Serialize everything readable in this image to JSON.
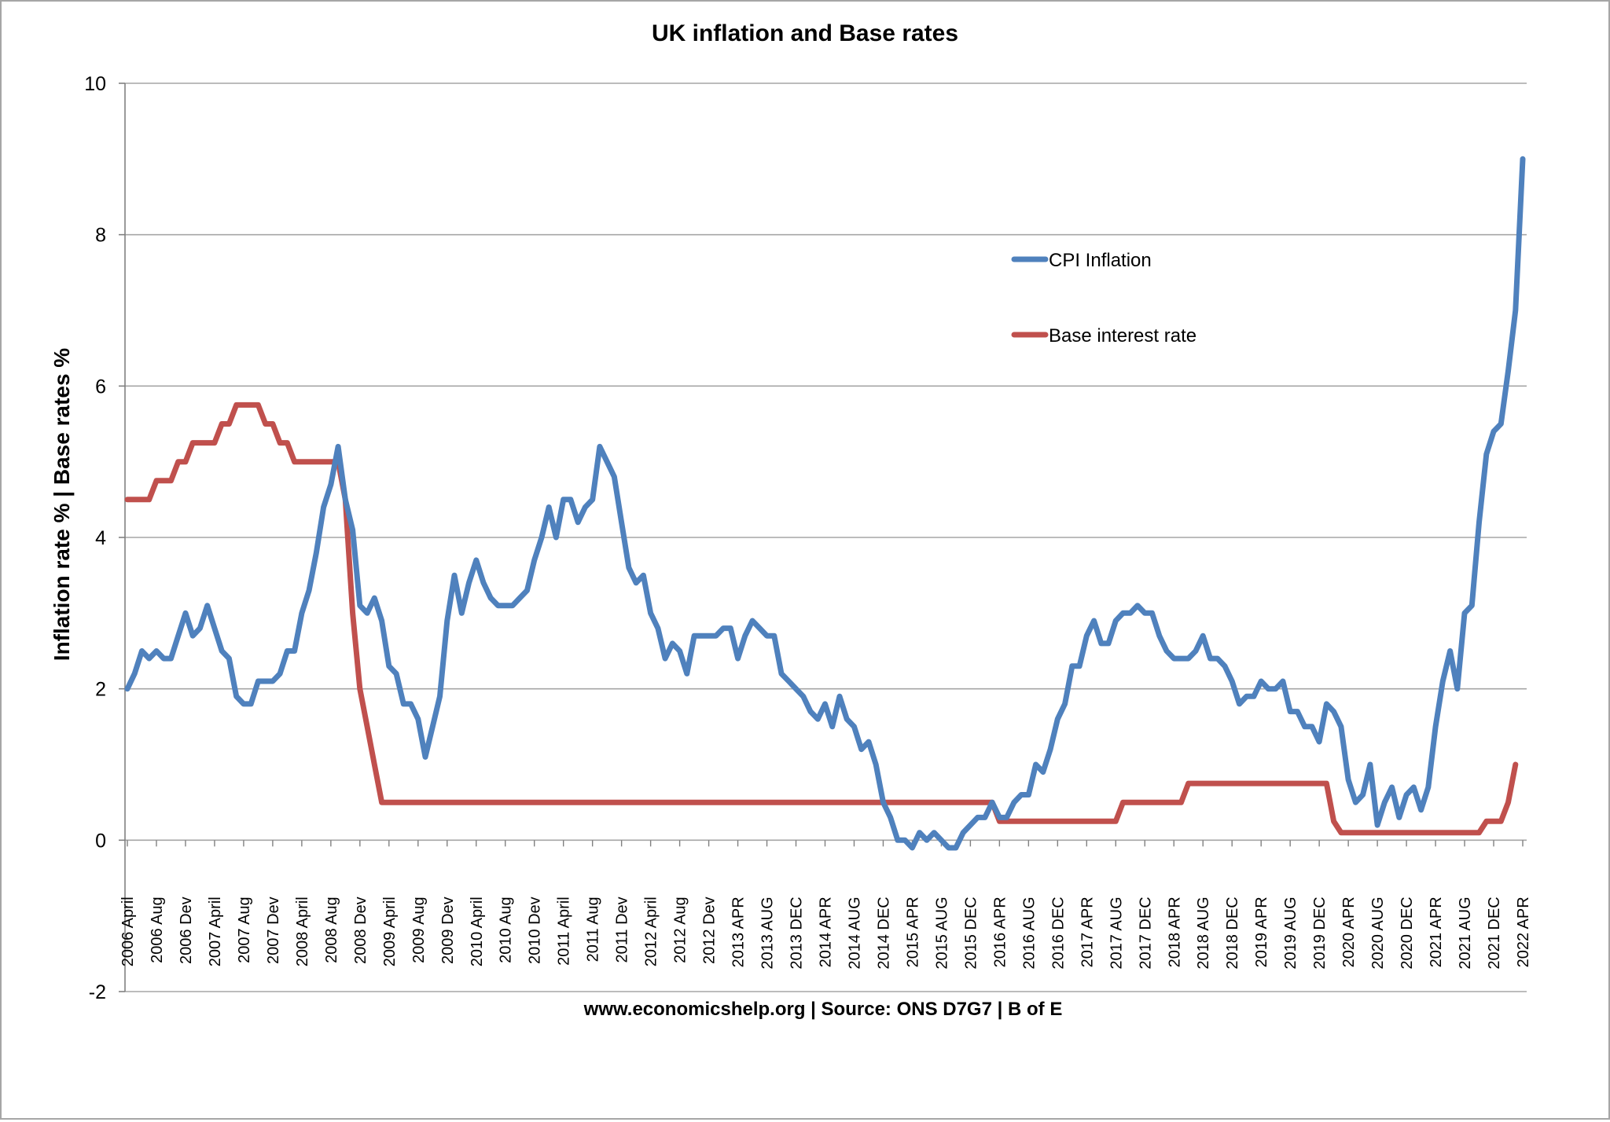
{
  "chart_data": {
    "type": "line",
    "title": "UK inflation and Base rates",
    "ylabel": "Inflation rate %  |  Base rates %",
    "xlabel": "www.economicshelp.org | Source: ONS D7G7  | B of E",
    "ylim": [
      -2,
      10
    ],
    "yticks": [
      -2,
      0,
      2,
      4,
      6,
      8,
      10
    ],
    "grid": true,
    "legend_position": "top-right",
    "x_tick_labels": [
      "2006 April",
      "2006 Aug",
      "2006 Dev",
      "2007 April",
      "2007 Aug",
      "2007 Dev",
      "2008 April",
      "2008 Aug",
      "2008 Dev",
      "2009 April",
      "2009 Aug",
      "2009 Dev",
      "2010 April",
      "2010 Aug",
      "2010 Dev",
      "2011 April",
      "2011 Aug",
      "2011 Dev",
      "2012 April",
      "2012 Aug",
      "2012 Dev",
      "2013 APR",
      "2013 AUG",
      "2013 DEC",
      "2014 APR",
      "2014 AUG",
      "2014 DEC",
      "2015 APR",
      "2015 AUG",
      "2015 DEC",
      "2016 APR",
      "2016 AUG",
      "2016 DEC",
      "2017 APR",
      "2017 AUG",
      "2017 DEC",
      "2018 APR",
      "2018 AUG",
      "2018 DEC",
      "2019 APR",
      "2019 AUG",
      "2019 DEC",
      "2020 APR",
      "2020 AUG",
      "2020 DEC",
      "2021 APR",
      "2021 AUG",
      "2021 DEC",
      "2022 APR"
    ],
    "months_per_tick": 4,
    "series": [
      {
        "name": "CPI Inflation",
        "color": "#4f81bd",
        "values": [
          2.0,
          2.2,
          2.5,
          2.4,
          2.5,
          2.4,
          2.4,
          2.7,
          3.0,
          2.7,
          2.8,
          3.1,
          2.8,
          2.5,
          2.4,
          1.9,
          1.8,
          1.8,
          2.1,
          2.1,
          2.1,
          2.2,
          2.5,
          2.5,
          3.0,
          3.3,
          3.8,
          4.4,
          4.7,
          5.2,
          4.5,
          4.1,
          3.1,
          3.0,
          3.2,
          2.9,
          2.3,
          2.2,
          1.8,
          1.8,
          1.6,
          1.1,
          1.5,
          1.9,
          2.9,
          3.5,
          3.0,
          3.4,
          3.7,
          3.4,
          3.2,
          3.1,
          3.1,
          3.1,
          3.2,
          3.3,
          3.7,
          4.0,
          4.4,
          4.0,
          4.5,
          4.5,
          4.2,
          4.4,
          4.5,
          5.2,
          5.0,
          4.8,
          4.2,
          3.6,
          3.4,
          3.5,
          3.0,
          2.8,
          2.4,
          2.6,
          2.5,
          2.2,
          2.7,
          2.7,
          2.7,
          2.7,
          2.8,
          2.8,
          2.4,
          2.7,
          2.9,
          2.8,
          2.7,
          2.7,
          2.2,
          2.1,
          2.0,
          1.9,
          1.7,
          1.6,
          1.8,
          1.5,
          1.9,
          1.6,
          1.5,
          1.2,
          1.3,
          1.0,
          0.5,
          0.3,
          0.0,
          0.0,
          -0.1,
          0.1,
          0.0,
          0.1,
          0.0,
          -0.1,
          -0.1,
          0.1,
          0.2,
          0.3,
          0.3,
          0.5,
          0.3,
          0.3,
          0.5,
          0.6,
          0.6,
          1.0,
          0.9,
          1.2,
          1.6,
          1.8,
          2.3,
          2.3,
          2.7,
          2.9,
          2.6,
          2.6,
          2.9,
          3.0,
          3.0,
          3.1,
          3.0,
          3.0,
          2.7,
          2.5,
          2.4,
          2.4,
          2.4,
          2.5,
          2.7,
          2.4,
          2.4,
          2.3,
          2.1,
          1.8,
          1.9,
          1.9,
          2.1,
          2.0,
          2.0,
          2.1,
          1.7,
          1.7,
          1.5,
          1.5,
          1.3,
          1.8,
          1.7,
          1.5,
          0.8,
          0.5,
          0.6,
          1.0,
          0.2,
          0.5,
          0.7,
          0.3,
          0.6,
          0.7,
          0.4,
          0.7,
          1.5,
          2.1,
          2.5,
          2.0,
          3.0,
          3.1,
          4.2,
          5.1,
          5.4,
          5.5,
          6.2,
          7.0,
          9.0
        ]
      },
      {
        "name": "Base interest rate",
        "color": "#c0504d",
        "values": [
          4.5,
          4.5,
          4.5,
          4.5,
          4.75,
          4.75,
          4.75,
          5.0,
          5.0,
          5.25,
          5.25,
          5.25,
          5.25,
          5.5,
          5.5,
          5.75,
          5.75,
          5.75,
          5.75,
          5.5,
          5.5,
          5.25,
          5.25,
          5.0,
          5.0,
          5.0,
          5.0,
          5.0,
          5.0,
          5.0,
          4.5,
          3.0,
          2.0,
          1.5,
          1.0,
          0.5,
          0.5,
          0.5,
          0.5,
          0.5,
          0.5,
          0.5,
          0.5,
          0.5,
          0.5,
          0.5,
          0.5,
          0.5,
          0.5,
          0.5,
          0.5,
          0.5,
          0.5,
          0.5,
          0.5,
          0.5,
          0.5,
          0.5,
          0.5,
          0.5,
          0.5,
          0.5,
          0.5,
          0.5,
          0.5,
          0.5,
          0.5,
          0.5,
          0.5,
          0.5,
          0.5,
          0.5,
          0.5,
          0.5,
          0.5,
          0.5,
          0.5,
          0.5,
          0.5,
          0.5,
          0.5,
          0.5,
          0.5,
          0.5,
          0.5,
          0.5,
          0.5,
          0.5,
          0.5,
          0.5,
          0.5,
          0.5,
          0.5,
          0.5,
          0.5,
          0.5,
          0.5,
          0.5,
          0.5,
          0.5,
          0.5,
          0.5,
          0.5,
          0.5,
          0.5,
          0.5,
          0.5,
          0.5,
          0.5,
          0.5,
          0.5,
          0.5,
          0.5,
          0.5,
          0.5,
          0.5,
          0.5,
          0.5,
          0.5,
          0.5,
          0.25,
          0.25,
          0.25,
          0.25,
          0.25,
          0.25,
          0.25,
          0.25,
          0.25,
          0.25,
          0.25,
          0.25,
          0.25,
          0.25,
          0.25,
          0.25,
          0.25,
          0.5,
          0.5,
          0.5,
          0.5,
          0.5,
          0.5,
          0.5,
          0.5,
          0.5,
          0.75,
          0.75,
          0.75,
          0.75,
          0.75,
          0.75,
          0.75,
          0.75,
          0.75,
          0.75,
          0.75,
          0.75,
          0.75,
          0.75,
          0.75,
          0.75,
          0.75,
          0.75,
          0.75,
          0.75,
          0.25,
          0.1,
          0.1,
          0.1,
          0.1,
          0.1,
          0.1,
          0.1,
          0.1,
          0.1,
          0.1,
          0.1,
          0.1,
          0.1,
          0.1,
          0.1,
          0.1,
          0.1,
          0.1,
          0.1,
          0.1,
          0.25,
          0.25,
          0.25,
          0.5,
          1.0
        ]
      }
    ]
  }
}
